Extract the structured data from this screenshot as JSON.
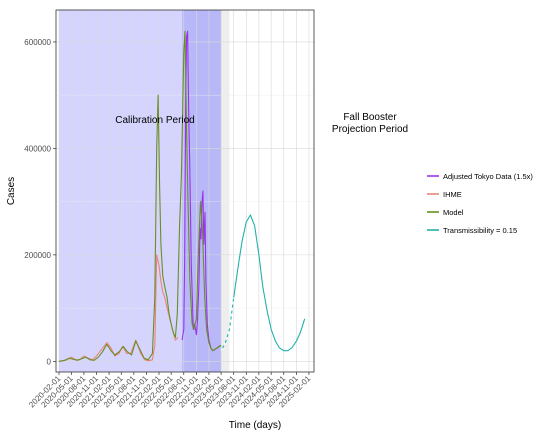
{
  "chart_data": {
    "type": "line",
    "xlabel": "Time (days)",
    "ylabel": "Cases",
    "ylim": [
      -20000,
      660000
    ],
    "y_ticks": [
      0,
      200000,
      400000,
      600000
    ],
    "y_tick_labels": [
      "0",
      "200000",
      "400000",
      "600000"
    ],
    "x_range": [
      "2020-01-10",
      "2025-03-10"
    ],
    "x_ticks": [
      "2020-02-01",
      "2020-05-01",
      "2020-08-01",
      "2020-11-01",
      "2021-02-01",
      "2021-05-01",
      "2021-08-01",
      "2021-11-01",
      "2022-02-01",
      "2022-05-01",
      "2022-08-01",
      "2022-11-01",
      "2023-02-01",
      "2023-05-01",
      "2023-08-01",
      "2023-11-01",
      "2024-02-01",
      "2024-05-01",
      "2024-08-01",
      "2024-11-01",
      "2025-02-01"
    ],
    "grid": true,
    "legend_position": "right",
    "annotations": [
      {
        "id": "calibration",
        "lines": [
          "Calibration Period"
        ]
      },
      {
        "id": "fall-booster",
        "lines": [
          "Fall Booster",
          "Projection Period"
        ]
      }
    ],
    "shaded_regions": [
      {
        "id": "calibration",
        "start": "2020-02-01",
        "end": "2023-05-01",
        "color": "#ccccff"
      },
      {
        "id": "tokyo-overlap",
        "start": "2022-07-20",
        "end": "2023-05-01",
        "color": "#b3b3f7"
      },
      {
        "id": "transition",
        "start": "2023-05-01",
        "end": "2023-07-01",
        "color": "#ebebeb"
      }
    ],
    "series": [
      {
        "name": "Adjusted Tokyo Data (1.5x)",
        "color": "#9933ee",
        "x": [
          "2022-07-20",
          "2022-08-01",
          "2022-08-08",
          "2022-08-15",
          "2022-08-22",
          "2022-08-29",
          "2022-09-05",
          "2022-09-15",
          "2022-09-25",
          "2022-10-10",
          "2022-10-20",
          "2022-11-01",
          "2022-11-10",
          "2022-11-20",
          "2022-11-28",
          "2022-12-05",
          "2022-12-12",
          "2022-12-19",
          "2022-12-26",
          "2023-01-03",
          "2023-01-10",
          "2023-01-20",
          "2023-02-01",
          "2023-02-15",
          "2023-03-01",
          "2023-03-15",
          "2023-04-01",
          "2023-04-15",
          "2023-05-01"
        ],
        "y": [
          40000,
          60000,
          200000,
          500000,
          610000,
          620000,
          480000,
          350000,
          180000,
          60000,
          70000,
          50000,
          80000,
          150000,
          250000,
          230000,
          300000,
          320000,
          220000,
          280000,
          150000,
          70000,
          40000,
          25000,
          20000,
          22000,
          25000,
          28000,
          30000
        ]
      },
      {
        "name": "IHME",
        "color": "#e8857a",
        "x": [
          "2020-02-01",
          "2020-04-01",
          "2020-05-01",
          "2020-06-01",
          "2020-07-01",
          "2020-08-01",
          "2020-09-01",
          "2020-10-01",
          "2020-11-01",
          "2020-12-01",
          "2021-01-15",
          "2021-02-15",
          "2021-03-15",
          "2021-04-15",
          "2021-05-10",
          "2021-06-10",
          "2021-07-10",
          "2021-08-15",
          "2021-09-20",
          "2021-10-20",
          "2021-11-20",
          "2021-12-15",
          "2022-01-01",
          "2022-01-15",
          "2022-02-01",
          "2022-02-15",
          "2022-03-01",
          "2022-03-15",
          "2022-04-01",
          "2022-05-01",
          "2022-06-01",
          "2022-06-20"
        ],
        "y": [
          0,
          3000,
          8000,
          3000,
          3000,
          10000,
          6000,
          3000,
          10000,
          20000,
          35000,
          25000,
          10000,
          15000,
          28000,
          15000,
          15000,
          40000,
          15000,
          3000,
          1000,
          3000,
          30000,
          200000,
          180000,
          150000,
          130000,
          120000,
          100000,
          70000,
          40000,
          45000
        ]
      },
      {
        "name": "Model",
        "color": "#6b8e23",
        "x": [
          "2020-02-01",
          "2020-03-15",
          "2020-04-15",
          "2020-05-15",
          "2020-06-15",
          "2020-07-15",
          "2020-08-15",
          "2020-09-15",
          "2020-10-15",
          "2020-11-15",
          "2020-12-15",
          "2021-01-15",
          "2021-02-15",
          "2021-03-15",
          "2021-04-15",
          "2021-05-15",
          "2021-06-15",
          "2021-07-15",
          "2021-08-15",
          "2021-09-15",
          "2021-10-15",
          "2021-11-15",
          "2021-12-15",
          "2022-01-01",
          "2022-01-15",
          "2022-01-25",
          "2022-02-05",
          "2022-02-15",
          "2022-03-01",
          "2022-03-15",
          "2022-04-01",
          "2022-04-15",
          "2022-05-01",
          "2022-05-15",
          "2022-06-01",
          "2022-06-15",
          "2022-07-01",
          "2022-07-15",
          "2022-08-01",
          "2022-08-10",
          "2022-08-20",
          "2022-09-01",
          "2022-09-15",
          "2022-10-01",
          "2022-10-15",
          "2022-11-01",
          "2022-11-15",
          "2022-12-01",
          "2022-12-15",
          "2023-01-01",
          "2023-01-15",
          "2023-02-01",
          "2023-02-15",
          "2023-03-01",
          "2023-04-01",
          "2023-05-01"
        ],
        "y": [
          0,
          2000,
          6000,
          4000,
          2000,
          5000,
          8000,
          3000,
          2000,
          8000,
          18000,
          32000,
          20000,
          12000,
          18000,
          28000,
          18000,
          12000,
          38000,
          22000,
          6000,
          3000,
          15000,
          120000,
          400000,
          500000,
          330000,
          220000,
          160000,
          140000,
          120000,
          90000,
          70000,
          55000,
          45000,
          90000,
          250000,
          350000,
          580000,
          620000,
          450000,
          300000,
          150000,
          70000,
          60000,
          80000,
          200000,
          300000,
          250000,
          120000,
          60000,
          35000,
          25000,
          20000,
          25000,
          30000
        ]
      },
      {
        "name": "Transmissibility = 0.15",
        "color": "#20b2aa",
        "x": [
          "2023-05-01",
          "2023-06-01",
          "2023-07-01",
          "2023-08-01",
          "2023-09-01",
          "2023-10-01",
          "2023-11-01",
          "2023-12-01",
          "2024-01-01",
          "2024-02-01",
          "2024-03-01",
          "2024-04-01",
          "2024-05-01",
          "2024-06-01",
          "2024-07-01",
          "2024-08-01",
          "2024-09-01",
          "2024-10-01",
          "2024-11-01",
          "2024-12-01",
          "2025-01-01"
        ],
        "y": [
          20000,
          35000,
          60000,
          120000,
          175000,
          225000,
          262000,
          275000,
          255000,
          200000,
          140000,
          95000,
          60000,
          38000,
          25000,
          20000,
          20000,
          26000,
          38000,
          55000,
          80000
        ]
      }
    ]
  }
}
